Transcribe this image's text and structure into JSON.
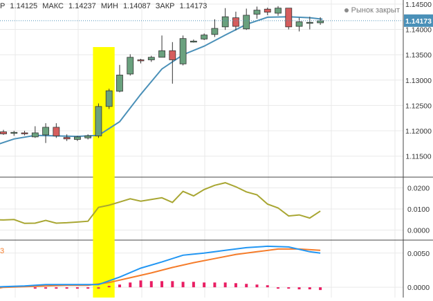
{
  "header": {
    "ohlc": [
      {
        "label": "Р",
        "value": ""
      },
      {
        "label": "",
        "value": "1.14125"
      },
      {
        "label": "МАКС",
        "value": "1.14237"
      },
      {
        "label": "МИН",
        "value": "1.14087"
      },
      {
        "label": "ЗАКР",
        "value": "1.14173"
      }
    ],
    "market_status": "Рынок закрыт",
    "indicator_prefix": "3"
  },
  "colors": {
    "up_candle": "#6aa17e",
    "down_candle": "#d65d5d",
    "moving_average": "#4a90b8",
    "oscillator": "#a8a632",
    "macd": "#2196f3",
    "signal": "#f57c2a",
    "histogram": "#e91e63",
    "highlight": "#ffff00",
    "grid": "#e9e9e9",
    "price_label_bg": "#4a90b8"
  },
  "chart_data": [
    {
      "type": "candlestick",
      "current_price": "1.14173",
      "yticks": [
        "1.14500",
        "1.14000",
        "1.13500",
        "1.13000",
        "1.12500",
        "1.12000",
        "1.11500"
      ],
      "ylim": [
        1.111,
        1.1458
      ],
      "highlight_index": [
        9,
        10
      ],
      "candles": [
        {
          "o": 1.1198,
          "h": 1.1202,
          "l": 1.1192,
          "c": 1.1194
        },
        {
          "o": 1.1195,
          "h": 1.12,
          "l": 1.119,
          "c": 1.1197
        },
        {
          "o": 1.1196,
          "h": 1.12,
          "l": 1.1191,
          "c": 1.1194
        },
        {
          "o": 1.1188,
          "h": 1.1209,
          "l": 1.1186,
          "c": 1.1196
        },
        {
          "o": 1.1192,
          "h": 1.1215,
          "l": 1.1176,
          "c": 1.1207
        },
        {
          "o": 1.1207,
          "h": 1.1215,
          "l": 1.1186,
          "c": 1.119
        },
        {
          "o": 1.1187,
          "h": 1.1193,
          "l": 1.118,
          "c": 1.1184
        },
        {
          "o": 1.1183,
          "h": 1.119,
          "l": 1.118,
          "c": 1.1188
        },
        {
          "o": 1.1186,
          "h": 1.1193,
          "l": 1.1183,
          "c": 1.119
        },
        {
          "o": 1.119,
          "h": 1.1254,
          "l": 1.1186,
          "c": 1.1248
        },
        {
          "o": 1.1248,
          "h": 1.1283,
          "l": 1.1243,
          "c": 1.1279
        },
        {
          "o": 1.1278,
          "h": 1.133,
          "l": 1.1276,
          "c": 1.131
        },
        {
          "o": 1.1312,
          "h": 1.1351,
          "l": 1.1309,
          "c": 1.1345
        },
        {
          "o": 1.134,
          "h": 1.1342,
          "l": 1.1333,
          "c": 1.1339
        },
        {
          "o": 1.134,
          "h": 1.1348,
          "l": 1.1336,
          "c": 1.1345
        },
        {
          "o": 1.1345,
          "h": 1.1388,
          "l": 1.1345,
          "c": 1.1358
        },
        {
          "o": 1.1358,
          "h": 1.1375,
          "l": 1.1293,
          "c": 1.134
        },
        {
          "o": 1.1332,
          "h": 1.1388,
          "l": 1.1329,
          "c": 1.1382
        },
        {
          "o": 1.1377,
          "h": 1.138,
          "l": 1.1374,
          "c": 1.1377
        },
        {
          "o": 1.1381,
          "h": 1.1392,
          "l": 1.1379,
          "c": 1.1389
        },
        {
          "o": 1.139,
          "h": 1.142,
          "l": 1.1385,
          "c": 1.1402
        },
        {
          "o": 1.1405,
          "h": 1.1442,
          "l": 1.1399,
          "c": 1.1425
        },
        {
          "o": 1.1423,
          "h": 1.1435,
          "l": 1.1398,
          "c": 1.1406
        },
        {
          "o": 1.1401,
          "h": 1.1441,
          "l": 1.1399,
          "c": 1.1428
        },
        {
          "o": 1.143,
          "h": 1.1445,
          "l": 1.1421,
          "c": 1.1438
        },
        {
          "o": 1.144,
          "h": 1.1443,
          "l": 1.1428,
          "c": 1.1434
        },
        {
          "o": 1.1432,
          "h": 1.1446,
          "l": 1.1427,
          "c": 1.1442
        },
        {
          "o": 1.1442,
          "h": 1.1442,
          "l": 1.14,
          "c": 1.1405
        },
        {
          "o": 1.1406,
          "h": 1.1423,
          "l": 1.1396,
          "c": 1.1415
        },
        {
          "o": 1.1413,
          "h": 1.1425,
          "l": 1.14,
          "c": 1.1414
        },
        {
          "o": 1.1413,
          "h": 1.1424,
          "l": 1.1409,
          "c": 1.1417
        }
      ],
      "moving_average": {
        "x": [
          -1,
          1,
          3,
          5,
          7,
          9,
          11,
          13,
          15,
          17,
          19,
          21,
          23,
          25,
          27,
          29,
          30.2
        ],
        "values": [
          1.117,
          1.1184,
          1.1191,
          1.119,
          1.1189,
          1.1191,
          1.1218,
          1.1272,
          1.1322,
          1.135,
          1.1367,
          1.1389,
          1.141,
          1.1424,
          1.1425,
          1.1423,
          1.142
        ]
      }
    },
    {
      "type": "line",
      "yticks": [
        "0.0200",
        "0.0100",
        "0.0000"
      ],
      "ylim": [
        -0.0044,
        0.0244
      ],
      "series": [
        {
          "x": [
            -1,
            0,
            1,
            2,
            3,
            4,
            5,
            6,
            7,
            8,
            9,
            10,
            11,
            12,
            13,
            14,
            15,
            16,
            17,
            18,
            19,
            20,
            21,
            22,
            23,
            24,
            25,
            26,
            27,
            28,
            29,
            30
          ],
          "values": [
            0.005,
            0.0048,
            0.005,
            0.0032,
            0.0033,
            0.0046,
            0.0033,
            0.0035,
            0.0038,
            0.0042,
            0.0108,
            0.0118,
            0.0133,
            0.0148,
            0.0137,
            0.0145,
            0.0153,
            0.0131,
            0.0183,
            0.0162,
            0.0192,
            0.0212,
            0.0224,
            0.0205,
            0.0181,
            0.0167,
            0.0123,
            0.0105,
            0.0067,
            0.0072,
            0.0057,
            0.009
          ]
        }
      ]
    },
    {
      "type": "bar",
      "yticks": [
        "0.0050",
        "0.0000"
      ],
      "ylim": [
        -0.0015,
        0.0067
      ],
      "histogram": {
        "x": [
          3,
          4,
          5,
          6,
          7,
          8,
          9,
          10,
          11,
          12,
          13,
          14,
          15,
          16,
          17,
          18,
          19,
          20,
          21,
          22,
          23,
          24,
          25,
          26,
          27,
          28,
          29,
          30
        ],
        "values": [
          -0.0001,
          -0.0001,
          0,
          -0.0001,
          -0.0001,
          0,
          0,
          0.0002,
          0.0004,
          0.0007,
          0.001,
          0.0009,
          0.0009,
          0.0009,
          0.0008,
          0.0008,
          0.0007,
          0.0007,
          0.0007,
          0.0006,
          0.0005,
          0.0004,
          0.0003,
          0,
          -0.0002,
          -0.0003,
          -0.0003,
          -0.0004
        ]
      },
      "series": [
        {
          "x": [
            -1,
            0,
            2,
            4,
            5,
            7,
            9,
            11,
            13,
            15,
            17,
            19,
            21,
            23,
            25,
            27,
            29,
            30
          ],
          "values": [
            0.0,
            0.0001,
            0.0002,
            0.0004,
            0.0004,
            0.0004,
            0.0004,
            0.0015,
            0.0028,
            0.0037,
            0.0047,
            0.005,
            0.0054,
            0.0058,
            0.006,
            0.0059,
            0.0052,
            0.005
          ]
        },
        {
          "x": [
            -1,
            0,
            2,
            4,
            6,
            8,
            10,
            12,
            14,
            16,
            18,
            20,
            22,
            24,
            26,
            28,
            30
          ],
          "values": [
            -0.0003,
            0.0,
            0.0001,
            0.0002,
            0.0003,
            0.0003,
            0.0007,
            0.0014,
            0.0021,
            0.0029,
            0.0036,
            0.0042,
            0.0048,
            0.0052,
            0.0056,
            0.0056,
            0.0054
          ]
        }
      ]
    }
  ]
}
